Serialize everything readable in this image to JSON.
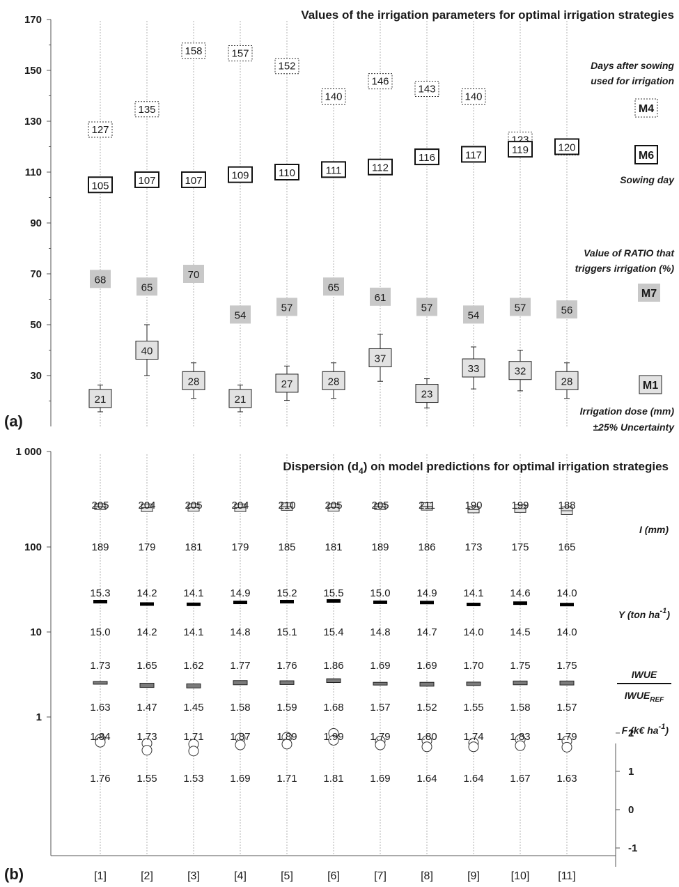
{
  "chart_data": [
    {
      "type": "scatter",
      "panel_label": "(a)",
      "title": "Values of the irrigation parameters for optimal irrigation strategies",
      "ylim": [
        10,
        170
      ],
      "yticks": [
        "170",
        "150",
        "130",
        "110",
        "90",
        "70",
        "50",
        "30"
      ],
      "categories": [
        "[1]",
        "[2]",
        "[3]",
        "[4]",
        "[5]",
        "[6]",
        "[7]",
        "[8]",
        "[9]",
        "[10]",
        "[11]"
      ],
      "series": [
        {
          "key": "M4",
          "label_lines": [
            "Days after sowing",
            "used for irrigation"
          ],
          "values": [
            127,
            135,
            158,
            157,
            152,
            140,
            146,
            143,
            140,
            123,
            120
          ]
        },
        {
          "key": "M6",
          "label_lines": [
            "Sowing day"
          ],
          "values": [
            105,
            107,
            107,
            109,
            110,
            111,
            112,
            116,
            117,
            119,
            120
          ]
        },
        {
          "key": "M7",
          "label_lines": [
            "Value of RATIO that",
            "triggers irrigation (%)"
          ],
          "values": [
            68,
            65,
            70,
            54,
            57,
            65,
            61,
            57,
            54,
            57,
            56
          ]
        },
        {
          "key": "M1",
          "label_lines": [
            "Irrigation dose (mm)",
            "±25% Uncertainty"
          ],
          "values": [
            21,
            40,
            28,
            21,
            27,
            28,
            37,
            23,
            33,
            32,
            28
          ]
        }
      ]
    },
    {
      "type": "scatter",
      "panel_label": "(b)",
      "title_pre": "Dispersion (d",
      "title_sub": "4",
      "title_post": ") on model predictions for optimal irrigation strategies",
      "y_scale": "log",
      "yticks_left": [
        "1 000",
        "100",
        "10",
        "1"
      ],
      "yticks_right": [
        "2",
        "1",
        "0",
        "-1"
      ],
      "categories": [
        "[1]",
        "[2]",
        "[3]",
        "[4]",
        "[5]",
        "[6]",
        "[7]",
        "[8]",
        "[9]",
        "[10]",
        "[11]"
      ],
      "series": [
        {
          "key": "I",
          "label": "I (mm)",
          "upper": [
            "205",
            "204",
            "205",
            "204",
            "210",
            "205",
            "205",
            "211",
            "190",
            "199",
            "188"
          ],
          "lower": [
            "189",
            "179",
            "181",
            "179",
            "185",
            "181",
            "189",
            "186",
            "173",
            "175",
            "165"
          ]
        },
        {
          "key": "Y",
          "label_pre": "Y (ton ha",
          "label_sup": "-1",
          "label_post": ")",
          "upper": [
            "15.3",
            "14.2",
            "14.1",
            "14.9",
            "15.2",
            "15.5",
            "15.0",
            "14.9",
            "14.1",
            "14.6",
            "14.0"
          ],
          "lower": [
            "15.0",
            "14.2",
            "14.1",
            "14.8",
            "15.1",
            "15.4",
            "14.8",
            "14.7",
            "14.0",
            "14.5",
            "14.0"
          ]
        },
        {
          "key": "IWUE",
          "label_num": "IWUE",
          "label_den": "IWUE",
          "label_den_sub": "REF",
          "upper": [
            "1.73",
            "1.65",
            "1.62",
            "1.77",
            "1.76",
            "1.86",
            "1.69",
            "1.69",
            "1.70",
            "1.75",
            "1.75"
          ],
          "lower": [
            "1.63",
            "1.47",
            "1.45",
            "1.58",
            "1.59",
            "1.68",
            "1.57",
            "1.52",
            "1.55",
            "1.58",
            "1.57"
          ]
        },
        {
          "key": "F",
          "label_pre": "F (k€ ha",
          "label_sup": "-1",
          "label_post": ")",
          "upper": [
            "1.84",
            "1.73",
            "1.71",
            "1.87",
            "1.89",
            "1.99",
            "1.79",
            "1.80",
            "1.74",
            "1.83",
            "1.79"
          ],
          "lower": [
            "1.76",
            "1.55",
            "1.53",
            "1.69",
            "1.71",
            "1.81",
            "1.69",
            "1.64",
            "1.64",
            "1.67",
            "1.63"
          ]
        }
      ]
    }
  ]
}
